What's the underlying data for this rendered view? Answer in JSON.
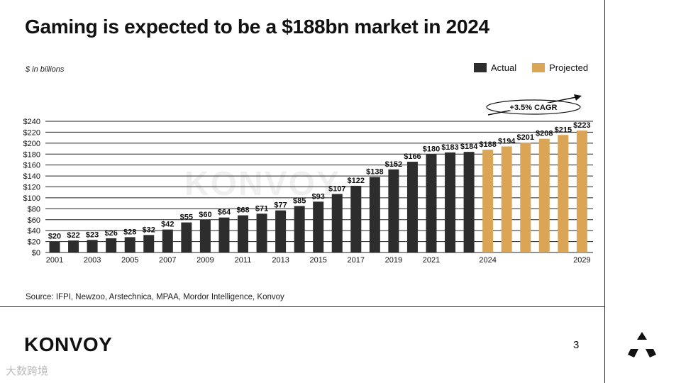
{
  "title": "Gaming is expected to be a $188bn market in 2024",
  "subtitle": "$ in billions",
  "legend": {
    "actual": "Actual",
    "projected": "Projected"
  },
  "colors": {
    "actual": "#2d2d2d",
    "projected": "#daa554",
    "grid": "#222222"
  },
  "annotation": "+3.5% CAGR",
  "source": "Source: IFPI, Newzoo, Arstechnica, MPAA, Mordor Intelligence, Konvoy",
  "brand": "KONVOY",
  "page_number": "3",
  "watermark_text": "KONVOY",
  "corner_mark": "大数跨境",
  "chart_data": {
    "type": "bar",
    "title": "Gaming is expected to be a $188bn market in 2024",
    "ylabel": "$ in billions",
    "ylim": [
      0,
      240
    ],
    "yticks": [
      0,
      20,
      40,
      60,
      80,
      100,
      120,
      140,
      160,
      180,
      200,
      220,
      240
    ],
    "ytick_labels": [
      "$0",
      "$20",
      "$40",
      "$60",
      "$80",
      "$100",
      "$120",
      "$140",
      "$160",
      "$180",
      "$200",
      "$220",
      "$240"
    ],
    "categories": [
      "2001",
      "2002",
      "2003",
      "2004",
      "2005",
      "2006",
      "2007",
      "2008",
      "2009",
      "2010",
      "2011",
      "2012",
      "2013",
      "2014",
      "2015",
      "2016",
      "2017",
      "2018",
      "2019",
      "2020",
      "2021",
      "2022",
      "2023",
      "2024",
      "2025",
      "2026",
      "2027",
      "2028",
      "2029"
    ],
    "xtick_labels": [
      "2001",
      "",
      "2003",
      "",
      "2005",
      "",
      "2007",
      "",
      "2009",
      "",
      "2011",
      "",
      "2013",
      "",
      "2015",
      "",
      "2017",
      "",
      "2019",
      "",
      "2021",
      "",
      "",
      "2024",
      "",
      "",
      "",
      "",
      "2029"
    ],
    "series": [
      {
        "name": "Actual",
        "values": [
          20,
          22,
          23,
          26,
          28,
          32,
          42,
          55,
          60,
          64,
          68,
          71,
          77,
          85,
          93,
          107,
          122,
          138,
          152,
          166,
          180,
          183,
          184,
          null,
          null,
          null,
          null,
          null,
          null
        ]
      },
      {
        "name": "Projected",
        "values": [
          null,
          null,
          null,
          null,
          null,
          null,
          null,
          null,
          null,
          null,
          null,
          null,
          null,
          null,
          null,
          null,
          null,
          null,
          null,
          null,
          null,
          null,
          null,
          188,
          194,
          201,
          208,
          215,
          223
        ]
      }
    ],
    "data_labels": [
      "$20",
      "$22",
      "$23",
      "$26",
      "$28",
      "$32",
      "$42",
      "$55",
      "$60",
      "$64",
      "$68",
      "$71",
      "$77",
      "$85",
      "$93",
      "$107",
      "$122",
      "$138",
      "$152",
      "$166",
      "$180",
      "$183",
      "$184",
      "$188",
      "$194",
      "$201",
      "$208",
      "$215",
      "$223"
    ],
    "legend_position": "top-right",
    "grid": true
  }
}
